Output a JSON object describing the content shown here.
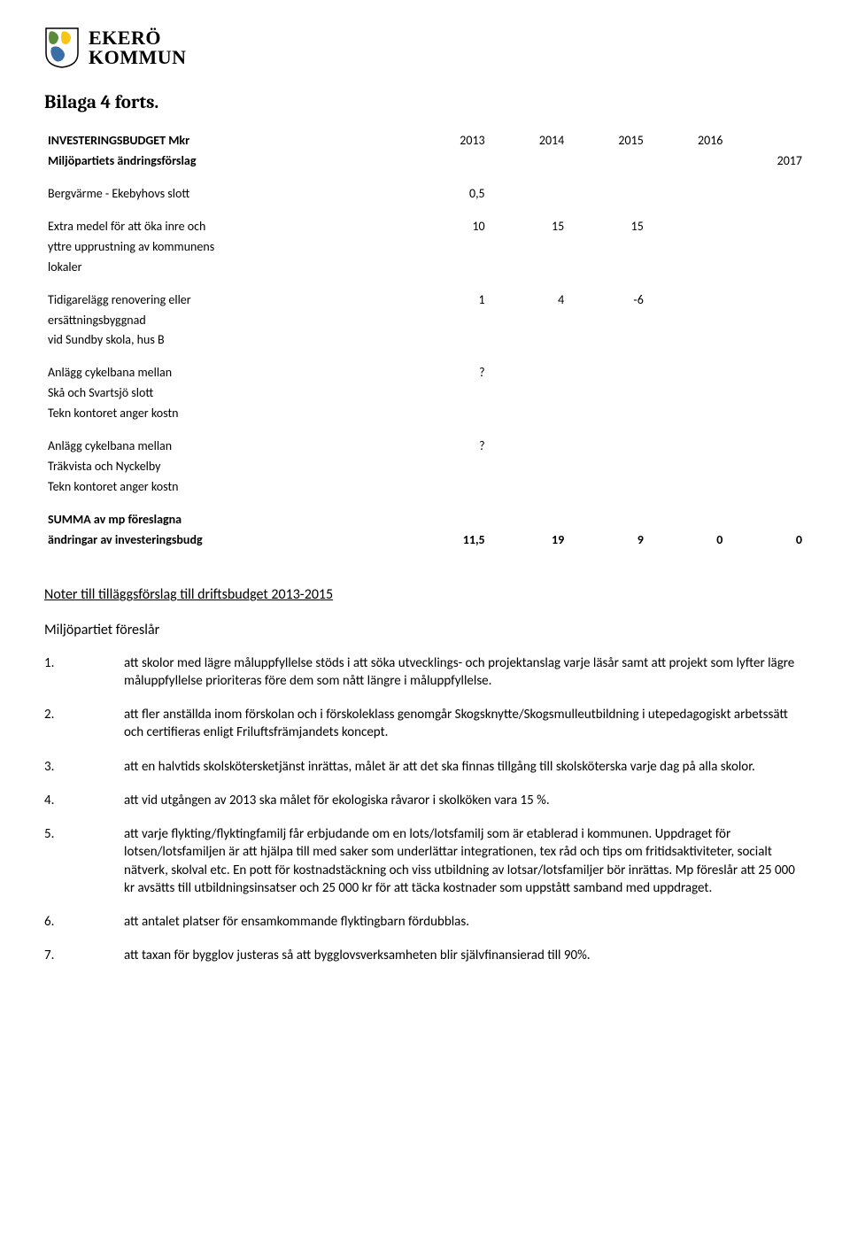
{
  "logo": {
    "line1": "EKERÖ",
    "line2": "KOMMUN",
    "shield_colors": {
      "green": "#5a8a3a",
      "yellow": "#f5c518",
      "blue": "#3a6ea5",
      "outline": "#000000"
    }
  },
  "page_title": "Bilaga 4 forts.",
  "budget_table": {
    "header_left_1": "INVESTERINGSBUDGET Mkr",
    "header_left_2": "Miljöpartiets ändringsförslag",
    "years": [
      "2013",
      "2014",
      "2015",
      "2016",
      "2017"
    ],
    "rows": [
      {
        "label": "Bergvärme - Ekebyhovs slott",
        "values": [
          "0,5",
          "",
          "",
          "",
          ""
        ]
      },
      {
        "label": "Extra medel för att öka inre och\nyttre upprustning av kommunens\nlokaler",
        "values": [
          "10",
          "15",
          "15",
          "",
          ""
        ]
      },
      {
        "label": "Tidigarelägg renovering eller\nersättningsbyggnad\nvid Sundby skola, hus B",
        "values": [
          "1",
          "4",
          "-6",
          "",
          ""
        ]
      },
      {
        "label": "Anlägg cykelbana mellan\nSkå och Svartsjö slott\nTekn kontoret anger kostn",
        "values": [
          "?",
          "",
          "",
          "",
          ""
        ]
      },
      {
        "label": "Anlägg cykelbana mellan\nTräkvista och Nyckelby\nTekn kontoret anger kostn",
        "values": [
          "?",
          "",
          "",
          "",
          ""
        ]
      }
    ],
    "sum_label_1": "SUMMA av mp föreslagna",
    "sum_label_2": "ändringar av investeringsbudg",
    "sum_values": [
      "11,5",
      "19",
      "9",
      "0",
      "0"
    ]
  },
  "notes_section": {
    "title": "Noter till tilläggsförslag till driftsbudget 2013-2015",
    "proposes": "Miljöpartiet föreslår",
    "items": [
      {
        "n": "1.",
        "text": "att skolor med lägre måluppfyllelse stöds i att söka utvecklings- och projektanslag varje läsår samt att projekt som lyfter lägre måluppfyllelse prioriteras före dem som nått längre i måluppfyllelse."
      },
      {
        "n": "2.",
        "text": "att fler anställda inom förskolan och i förskoleklass genomgår Skogsknytte/Skogsmulleutbildning i utepedagogiskt arbetssätt och certifieras enligt Friluftsfrämjandets koncept."
      },
      {
        "n": "3.",
        "text": "att en halvtids skolskötersketjänst inrättas, målet är att det ska finnas tillgång till skolsköterska varje dag på alla skolor."
      },
      {
        "n": "4.",
        "text": "att vid utgången av 2013 ska målet för ekologiska råvaror i skolköken vara 15 %."
      },
      {
        "n": "5.",
        "text": "att varje flykting/flyktingfamilj får erbjudande om en lots/lotsfamilj som är etablerad i kommunen. Uppdraget för lotsen/lotsfamiljen är att hjälpa till med saker som underlättar integrationen, tex råd och tips om fritidsaktiviteter, socialt nätverk, skolval etc. En pott för kostnadstäckning och viss utbildning av lotsar/lotsfamiljer bör inrättas. Mp föreslår att 25 000 kr avsätts till utbildningsinsatser och 25 000 kr för att täcka kostnader som uppstått samband med uppdraget."
      },
      {
        "n": "6.",
        "text": "att antalet platser för ensamkommande flyktingbarn fördubblas."
      },
      {
        "n": "7.",
        "text": "att taxan för bygglov justeras så att bygglovsverksamheten blir självfinansierad till 90%."
      }
    ]
  }
}
